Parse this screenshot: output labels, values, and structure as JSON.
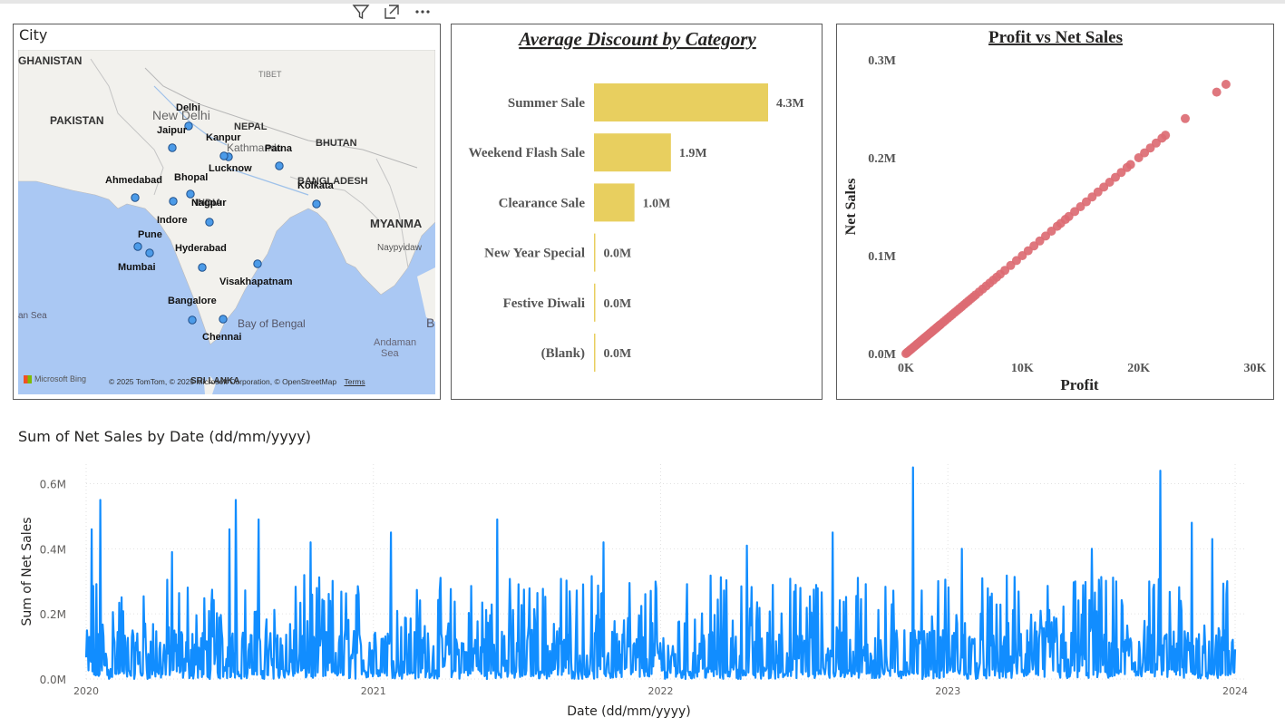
{
  "toolbar": {
    "filter_icon": "filter-icon",
    "focus_icon": "focus-mode-icon",
    "more_icon": "more-options-icon"
  },
  "map": {
    "title": "City",
    "regions": [
      "GHANISTAN",
      "PAKISTAN",
      "TIBET",
      "NEPAL",
      "BHUTAN",
      "BANGLADESH",
      "INDIA",
      "MYANMA",
      "Naypyidaw",
      "Kathmandu",
      "New Delhi",
      "Bay of Bengal",
      "Andaman Sea",
      "an Sea",
      "SRI LANKA",
      "B"
    ],
    "cities": [
      {
        "name": "Delhi"
      },
      {
        "name": "Jaipur"
      },
      {
        "name": "Kanpur"
      },
      {
        "name": "Patna"
      },
      {
        "name": "Lucknow"
      },
      {
        "name": "Ahmedabad"
      },
      {
        "name": "Bhopal"
      },
      {
        "name": "Kolkata"
      },
      {
        "name": "Nagpur"
      },
      {
        "name": "Indore"
      },
      {
        "name": "Pune"
      },
      {
        "name": "Mumbai"
      },
      {
        "name": "Hyderabad"
      },
      {
        "name": "Visakhapatnam"
      },
      {
        "name": "Bangalore"
      },
      {
        "name": "Chennai"
      }
    ],
    "attribution": "© 2025 TomTom, © 2025 Microsoft Corporation, © OpenStreetMap",
    "terms": "Terms",
    "bing_logo": "Microsoft Bing",
    "colors": {
      "water": "#aac8f3",
      "land": "#f2f1ed",
      "marker": "#4c9be8"
    }
  },
  "chart_data": [
    {
      "type": "bar",
      "orientation": "horizontal",
      "title": "Average Discount by Category",
      "categories": [
        "Summer Sale",
        "Weekend Flash Sale",
        "Clearance Sale",
        "New Year Special",
        "Festive Diwali",
        "(Blank)"
      ],
      "values": [
        4.3,
        1.9,
        1.0,
        0.0,
        0.0,
        0.0
      ],
      "value_labels": [
        "4.3M",
        "1.9M",
        "1.0M",
        "0.0M",
        "0.0M",
        "0.0M"
      ],
      "unit": "M",
      "color": "#e8cf5f"
    },
    {
      "type": "scatter",
      "title": "Profit vs Net Sales",
      "xlabel": "Profit",
      "ylabel": "Net Sales",
      "xticks": [
        "0K",
        "10K",
        "20K",
        "30K"
      ],
      "yticks": [
        "0.0M",
        "0.1M",
        "0.2M",
        "0.3M"
      ],
      "xlim": [
        0,
        30000
      ],
      "ylim": [
        0,
        0.3
      ],
      "slope_m_per_k": 0.01,
      "color": "#dc6b73",
      "x": [
        0,
        100,
        200,
        300,
        400,
        500,
        600,
        700,
        800,
        900,
        1000,
        1100,
        1200,
        1300,
        1400,
        1500,
        1600,
        1700,
        1800,
        1900,
        2000,
        2100,
        2200,
        2300,
        2400,
        2500,
        2600,
        2700,
        2800,
        2900,
        3000,
        3200,
        3400,
        3600,
        3800,
        4000,
        4200,
        4400,
        4600,
        4800,
        5000,
        5200,
        5400,
        5600,
        5800,
        6000,
        6300,
        6600,
        6900,
        7200,
        7500,
        7800,
        8100,
        8500,
        9000,
        9500,
        10000,
        10500,
        11000,
        11500,
        12000,
        12500,
        13000,
        13300,
        13700,
        14000,
        14500,
        15000,
        15500,
        16000,
        16500,
        17000,
        17500,
        18000,
        18500,
        19000,
        19300,
        20000,
        20500,
        21000,
        21500,
        22000,
        22300,
        24000,
        26700,
        27500
      ],
      "y": [
        0.0,
        0.001,
        0.002,
        0.003,
        0.004,
        0.005,
        0.006,
        0.007,
        0.008,
        0.009,
        0.01,
        0.011,
        0.012,
        0.013,
        0.014,
        0.015,
        0.016,
        0.017,
        0.018,
        0.019,
        0.02,
        0.021,
        0.022,
        0.023,
        0.024,
        0.025,
        0.026,
        0.027,
        0.028,
        0.029,
        0.03,
        0.032,
        0.034,
        0.036,
        0.038,
        0.04,
        0.042,
        0.044,
        0.046,
        0.048,
        0.05,
        0.052,
        0.054,
        0.056,
        0.058,
        0.06,
        0.063,
        0.066,
        0.069,
        0.072,
        0.075,
        0.078,
        0.081,
        0.085,
        0.09,
        0.095,
        0.1,
        0.105,
        0.11,
        0.115,
        0.12,
        0.125,
        0.13,
        0.133,
        0.137,
        0.14,
        0.145,
        0.15,
        0.155,
        0.16,
        0.165,
        0.17,
        0.175,
        0.18,
        0.185,
        0.19,
        0.193,
        0.2,
        0.205,
        0.21,
        0.215,
        0.22,
        0.223,
        0.24,
        0.267,
        0.275
      ]
    },
    {
      "type": "line",
      "title": "Sum of Net Sales by Date (dd/mm/yyyy)",
      "xlabel": "Date (dd/mm/yyyy)",
      "ylabel": "Sum of Net Sales",
      "xticks": [
        "2020",
        "2021",
        "2022",
        "2023",
        "2024"
      ],
      "yticks": [
        "0.0M",
        "0.2M",
        "0.4M",
        "0.6M"
      ],
      "xlim": [
        2020.0,
        2024.0
      ],
      "ylim": [
        0,
        0.66
      ],
      "color": "#118dff",
      "grid": true,
      "sample_count": 1460,
      "peaks_year_value": [
        [
          2020.02,
          0.46
        ],
        [
          2020.05,
          0.55
        ],
        [
          2020.3,
          0.39
        ],
        [
          2020.5,
          0.46
        ],
        [
          2020.52,
          0.55
        ],
        [
          2020.6,
          0.49
        ],
        [
          2020.78,
          0.42
        ],
        [
          2021.06,
          0.45
        ],
        [
          2021.43,
          0.49
        ],
        [
          2021.8,
          0.42
        ],
        [
          2022.3,
          0.41
        ],
        [
          2022.6,
          0.45
        ],
        [
          2022.88,
          0.65
        ],
        [
          2023.05,
          0.4
        ],
        [
          2023.5,
          0.4
        ],
        [
          2023.74,
          0.64
        ],
        [
          2023.85,
          0.48
        ],
        [
          2023.92,
          0.43
        ]
      ],
      "baseline_value": 0.0,
      "typical_max": 0.32
    }
  ]
}
